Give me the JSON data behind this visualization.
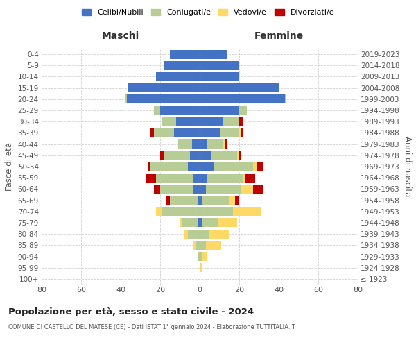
{
  "age_groups": [
    "100+",
    "95-99",
    "90-94",
    "85-89",
    "80-84",
    "75-79",
    "70-74",
    "65-69",
    "60-64",
    "55-59",
    "50-54",
    "45-49",
    "40-44",
    "35-39",
    "30-34",
    "25-29",
    "20-24",
    "15-19",
    "10-14",
    "5-9",
    "0-4"
  ],
  "birth_years": [
    "≤ 1923",
    "1924-1928",
    "1929-1933",
    "1934-1938",
    "1939-1943",
    "1944-1948",
    "1949-1953",
    "1954-1958",
    "1959-1963",
    "1964-1968",
    "1969-1973",
    "1974-1978",
    "1979-1983",
    "1984-1988",
    "1989-1993",
    "1994-1998",
    "1999-2003",
    "2004-2008",
    "2009-2013",
    "2014-2018",
    "2019-2023"
  ],
  "maschi": {
    "celibi": [
      0,
      0,
      0,
      0,
      0,
      1,
      0,
      1,
      3,
      3,
      6,
      5,
      4,
      13,
      12,
      20,
      37,
      36,
      22,
      18,
      15
    ],
    "coniugati": [
      0,
      0,
      1,
      2,
      6,
      8,
      19,
      14,
      17,
      19,
      19,
      13,
      7,
      10,
      7,
      3,
      1,
      0,
      0,
      0,
      0
    ],
    "vedovi": [
      0,
      0,
      0,
      1,
      2,
      1,
      3,
      0,
      0,
      0,
      0,
      0,
      0,
      0,
      0,
      0,
      0,
      0,
      0,
      0,
      0
    ],
    "divorziati": [
      0,
      0,
      0,
      0,
      0,
      0,
      0,
      2,
      3,
      5,
      1,
      2,
      0,
      2,
      0,
      0,
      0,
      0,
      0,
      0,
      0
    ]
  },
  "femmine": {
    "nubili": [
      0,
      0,
      0,
      0,
      0,
      1,
      0,
      1,
      3,
      4,
      7,
      6,
      4,
      10,
      12,
      20,
      43,
      40,
      20,
      20,
      14
    ],
    "coniugate": [
      0,
      0,
      1,
      3,
      5,
      8,
      17,
      14,
      18,
      18,
      20,
      13,
      8,
      10,
      8,
      4,
      1,
      0,
      0,
      0,
      0
    ],
    "vedove": [
      0,
      1,
      3,
      8,
      10,
      10,
      14,
      3,
      6,
      1,
      2,
      1,
      1,
      1,
      0,
      0,
      0,
      0,
      0,
      0,
      0
    ],
    "divorziate": [
      0,
      0,
      0,
      0,
      0,
      0,
      0,
      2,
      5,
      5,
      3,
      1,
      1,
      1,
      2,
      0,
      0,
      0,
      0,
      0,
      0
    ]
  },
  "colors": {
    "celibi_nubili": "#4472c4",
    "coniugati": "#b8cc96",
    "vedovi": "#ffd966",
    "divorziati": "#c00000"
  },
  "xlim": 80,
  "title": "Popolazione per età, sesso e stato civile - 2024",
  "subtitle": "COMUNE DI CASTELLO DEL MATESE (CE) - Dati ISTAT 1° gennaio 2024 - Elaborazione TUTTITALIA.IT",
  "xlabel_left": "Maschi",
  "xlabel_right": "Femmine",
  "ylabel_left": "Fasce di età",
  "ylabel_right": "Anni di nascita",
  "legend_labels": [
    "Celibi/Nubili",
    "Coniugati/e",
    "Vedovi/e",
    "Divorziati/e"
  ],
  "background_color": "#ffffff",
  "grid_color": "#cccccc"
}
